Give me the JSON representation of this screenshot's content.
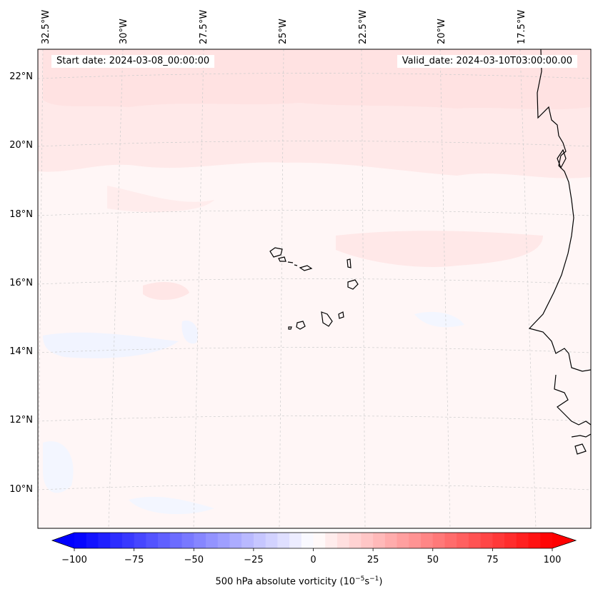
{
  "map": {
    "title_left": "Start date: 2024-03-08_00:00:00",
    "title_right": "Valid_date: 2024-03-10T03:00:00.00",
    "lon_ticks": [
      "32.5°W",
      "30°W",
      "27.5°W",
      "25°W",
      "22.5°W",
      "20°W",
      "17.5°W"
    ],
    "lat_ticks": [
      "22°N",
      "20°N",
      "18°N",
      "16°N",
      "14°N",
      "12°N",
      "10°N"
    ],
    "field_variable": "500 hPa absolute vorticity",
    "land_features": [
      "West African coastline",
      "Cape Verde islands"
    ],
    "colors": {
      "coastline": "#000000",
      "gridline": "#cccccc",
      "positive_shading": "#ffe6e6",
      "negative_shading": "#f0f4ff"
    }
  },
  "colorbar": {
    "min": -100,
    "max": 100,
    "step": 5,
    "tick_values": [
      -100,
      -75,
      -50,
      -25,
      0,
      25,
      50,
      75,
      100
    ],
    "tick_labels": [
      "−100",
      "−75",
      "−50",
      "−25",
      "0",
      "25",
      "50",
      "75",
      "100"
    ],
    "label_text": "500 hPa absolute vorticity (10",
    "label_exp1": "−5",
    "label_mid": "s",
    "label_exp2": "−1",
    "label_end": ")",
    "colormap": "bwr",
    "low_color": "#0000ff",
    "mid_color": "#ffffff",
    "high_color": "#ff0000"
  }
}
